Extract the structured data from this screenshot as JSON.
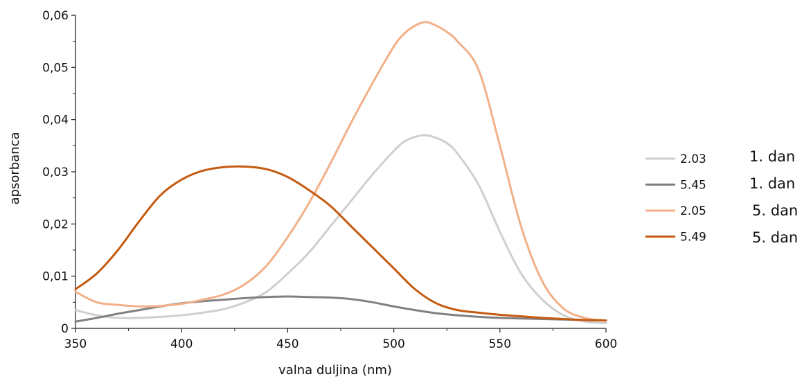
{
  "chart_data": {
    "type": "line",
    "title": "",
    "xlabel": "valna duljina (nm)",
    "ylabel": "apsorbanca",
    "xlim": [
      350,
      600
    ],
    "ylim": [
      0,
      0.06
    ],
    "x_ticks": [
      350,
      400,
      450,
      500,
      550,
      600
    ],
    "x_tick_labels": [
      "350",
      "400",
      "450",
      "500",
      "550",
      "600"
    ],
    "y_ticks": [
      0,
      0.01,
      0.02,
      0.03,
      0.04,
      0.05,
      0.06
    ],
    "y_tick_labels": [
      "0",
      "0,01",
      "0,02",
      "0,03",
      "0,04",
      "0,05",
      "0,06"
    ],
    "grid": false,
    "legend_position": "right",
    "series": [
      {
        "name": "2.03",
        "note": "1. dan",
        "color": "#cfcfcf",
        "x": [
          350,
          360,
          370,
          380,
          390,
          400,
          410,
          420,
          430,
          440,
          450,
          460,
          470,
          480,
          490,
          500,
          505,
          510,
          515,
          520,
          525,
          530,
          540,
          550,
          560,
          570,
          580,
          590,
          600
        ],
        "y": [
          0.0035,
          0.0025,
          0.002,
          0.002,
          0.0022,
          0.0025,
          0.003,
          0.0037,
          0.005,
          0.007,
          0.0105,
          0.0145,
          0.0195,
          0.0245,
          0.0295,
          0.034,
          0.0358,
          0.0367,
          0.037,
          0.0365,
          0.0355,
          0.0335,
          0.0275,
          0.0185,
          0.0105,
          0.0055,
          0.0025,
          0.0013,
          0.001
        ]
      },
      {
        "name": "5.45",
        "note": "1. dan",
        "color": "#808080",
        "x": [
          350,
          360,
          370,
          380,
          390,
          400,
          410,
          420,
          430,
          440,
          450,
          460,
          470,
          480,
          490,
          500,
          510,
          520,
          530,
          540,
          550,
          560,
          570,
          580,
          590,
          600
        ],
        "y": [
          0.0013,
          0.002,
          0.0028,
          0.0035,
          0.0042,
          0.0048,
          0.0052,
          0.0055,
          0.0058,
          0.006,
          0.0061,
          0.006,
          0.0059,
          0.0056,
          0.005,
          0.0042,
          0.0035,
          0.0029,
          0.0025,
          0.0022,
          0.002,
          0.0019,
          0.0018,
          0.0017,
          0.0016,
          0.0015
        ]
      },
      {
        "name": "2.05",
        "note": "5. dan",
        "color": "#f2b088",
        "x": [
          350,
          360,
          370,
          380,
          390,
          400,
          410,
          420,
          430,
          440,
          450,
          460,
          470,
          480,
          490,
          500,
          505,
          510,
          515,
          520,
          525,
          530,
          540,
          550,
          560,
          570,
          580,
          590,
          600
        ],
        "y": [
          0.007,
          0.005,
          0.0045,
          0.0042,
          0.0043,
          0.0047,
          0.0055,
          0.0065,
          0.0085,
          0.012,
          0.0175,
          0.024,
          0.0315,
          0.0395,
          0.047,
          0.054,
          0.0565,
          0.058,
          0.0587,
          0.058,
          0.0568,
          0.055,
          0.0495,
          0.035,
          0.0195,
          0.009,
          0.0038,
          0.002,
          0.0015
        ]
      },
      {
        "name": "5.49",
        "note": "5. dan",
        "color": "#c55a11",
        "x": [
          350,
          360,
          370,
          380,
          390,
          400,
          410,
          420,
          430,
          440,
          450,
          460,
          470,
          480,
          490,
          500,
          510,
          520,
          530,
          540,
          550,
          560,
          570,
          580,
          590,
          600
        ],
        "y": [
          0.0075,
          0.0105,
          0.015,
          0.0205,
          0.0255,
          0.0285,
          0.0302,
          0.0309,
          0.031,
          0.0305,
          0.029,
          0.0265,
          0.0235,
          0.0195,
          0.0155,
          0.0115,
          0.0075,
          0.0048,
          0.0035,
          0.003,
          0.0026,
          0.0023,
          0.002,
          0.0018,
          0.0016,
          0.0015
        ]
      }
    ]
  }
}
